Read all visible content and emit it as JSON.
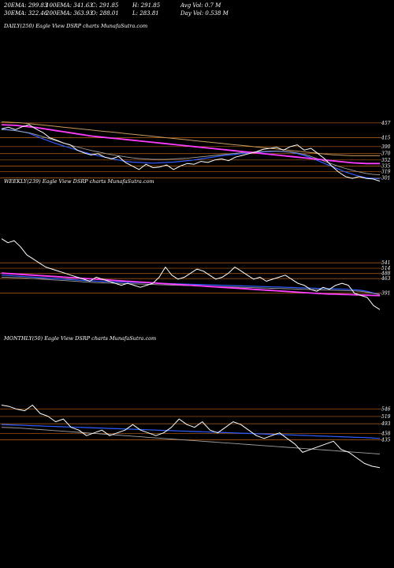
{
  "header": {
    "row1": [
      "20EMA: 299.83",
      "100EMA: 341.63",
      "C: 291.85",
      "H: 291.85",
      "Avg Vol: 0.7 M"
    ],
    "row2": [
      "30EMA: 322.46",
      "200EMA: 363.93",
      "O: 288.01",
      "L: 283.81",
      "Day Vol: 0.538 M"
    ]
  },
  "chart_data": [
    {
      "type": "line",
      "title": "DAILY(250) Eagle View DSRP charts MunafaSutra.com",
      "levels": [
        457,
        415,
        390,
        370,
        352,
        335,
        319,
        301
      ],
      "series": [
        {
          "values": [
            440,
            445,
            438,
            446,
            452,
            440,
            430,
            415,
            408,
            400,
            395,
            380,
            372,
            366,
            370,
            360,
            355,
            362,
            345,
            335,
            325,
            340,
            330,
            332,
            338,
            325,
            335,
            342,
            340,
            348,
            345,
            352,
            355,
            350,
            360,
            365,
            370,
            375,
            382,
            385,
            388,
            380,
            390,
            395,
            380,
            385,
            370,
            355,
            335,
            318,
            305,
            300,
            305,
            300,
            298,
            292
          ]
        },
        {
          "values": [
            440,
            438,
            436,
            432,
            428,
            420,
            412,
            405,
            398,
            392,
            386,
            380,
            374,
            369,
            364,
            360,
            356,
            352,
            348,
            346,
            345,
            344,
            343,
            344,
            345,
            346,
            348,
            350,
            352,
            355,
            358,
            361,
            364,
            366,
            368,
            370,
            372,
            373,
            375,
            376,
            377,
            376,
            374,
            370,
            365,
            358,
            350,
            342,
            334,
            326,
            318,
            312,
            306,
            302,
            300,
            299
          ]
        },
        {
          "values": [
            438,
            437,
            435,
            432,
            429,
            424,
            418,
            412,
            406,
            400,
            394,
            389,
            384,
            379,
            375,
            371,
            367,
            364,
            361,
            358,
            356,
            355,
            354,
            354,
            354,
            355,
            356,
            357,
            359,
            361,
            363,
            365,
            367,
            369,
            371,
            373,
            374,
            375,
            376,
            377,
            377,
            376,
            375,
            372,
            368,
            362,
            355,
            348,
            341,
            334,
            328,
            323,
            318,
            314,
            311,
            310
          ]
        },
        {
          "values": [
            452,
            451,
            450,
            448,
            446,
            444,
            441,
            438,
            435,
            432,
            429,
            426,
            423,
            420,
            418,
            416,
            414,
            412,
            410,
            408,
            406,
            404,
            402,
            400,
            398,
            396,
            394,
            392,
            390,
            388,
            386,
            384,
            382,
            380,
            378,
            376,
            374,
            372,
            370,
            368,
            366,
            364,
            362,
            360,
            358,
            356,
            354,
            352,
            350,
            348,
            346,
            344,
            343,
            342,
            342,
            342
          ]
        },
        {
          "values": [
            460,
            459,
            458,
            457,
            455,
            453,
            451,
            449,
            447,
            445,
            443,
            441,
            439,
            437,
            435,
            433,
            431,
            429,
            427,
            425,
            423,
            421,
            419,
            417,
            415,
            413,
            411,
            409,
            407,
            405,
            403,
            401,
            399,
            397,
            395,
            393,
            391,
            389,
            387,
            385,
            383,
            381,
            379,
            377,
            375,
            373,
            371,
            369,
            367,
            366,
            365,
            364,
            364,
            364,
            364,
            364
          ]
        }
      ]
    },
    {
      "type": "line",
      "title": "WEEKLY(239) Eagle View DSRP charts MunafaSutra.com",
      "levels": [
        541,
        514,
        488,
        463,
        391
      ],
      "series": [
        {
          "values": [
            660,
            640,
            650,
            620,
            580,
            560,
            540,
            520,
            510,
            500,
            490,
            480,
            470,
            460,
            450,
            470,
            460,
            450,
            440,
            430,
            440,
            430,
            420,
            430,
            440,
            470,
            520,
            480,
            460,
            470,
            490,
            510,
            500,
            480,
            460,
            470,
            490,
            520,
            500,
            480,
            460,
            470,
            450,
            460,
            470,
            480,
            460,
            440,
            430,
            410,
            400,
            420,
            410,
            430,
            440,
            430,
            390,
            380,
            370,
            330,
            310
          ]
        },
        {
          "values": [
            480,
            478,
            476,
            474,
            472,
            470,
            468,
            466,
            464,
            462,
            460,
            458,
            456,
            454,
            452,
            450,
            449,
            448,
            447,
            446,
            445,
            444,
            443,
            442,
            441,
            440,
            439,
            438,
            437,
            436,
            435,
            434,
            433,
            432,
            431,
            430,
            429,
            428,
            427,
            426,
            425,
            424,
            423,
            422,
            421,
            420,
            419,
            418,
            417,
            416,
            415,
            414,
            413,
            412,
            411,
            410,
            408,
            405,
            400,
            392,
            385
          ]
        },
        {
          "values": [
            470,
            469,
            468,
            467,
            465,
            463,
            461,
            459,
            457,
            455,
            453,
            451,
            449,
            447,
            445,
            443,
            442,
            441,
            440,
            439,
            438,
            437,
            436,
            435,
            434,
            433,
            432,
            431,
            430,
            429,
            428,
            427,
            426,
            425,
            424,
            423,
            422,
            421,
            420,
            419,
            418,
            417,
            416,
            415,
            414,
            413,
            412,
            411,
            410,
            409,
            408,
            407,
            406,
            405,
            404,
            403,
            402,
            400,
            396,
            390,
            384
          ]
        },
        {
          "values": [
            490,
            488,
            486,
            484,
            482,
            480,
            478,
            476,
            474,
            472,
            470,
            468,
            466,
            464,
            462,
            460,
            458,
            456,
            454,
            452,
            450,
            448,
            446,
            444,
            442,
            440,
            438,
            436,
            434,
            432,
            430,
            428,
            426,
            424,
            422,
            420,
            418,
            416,
            414,
            412,
            410,
            408,
            406,
            404,
            402,
            400,
            398,
            396,
            394,
            392,
            390,
            388,
            387,
            386,
            385,
            384,
            383,
            382,
            381,
            380,
            379
          ]
        }
      ]
    },
    {
      "type": "line",
      "title": "MONTHLY(50) Eagle View DSRP charts MunafaSutra.com",
      "levels": [
        546,
        519,
        493,
        458,
        435
      ],
      "series": [
        {
          "values": [
            560,
            555,
            545,
            540,
            560,
            530,
            520,
            500,
            510,
            480,
            470,
            450,
            460,
            470,
            450,
            460,
            470,
            490,
            470,
            460,
            450,
            460,
            480,
            510,
            490,
            480,
            500,
            470,
            460,
            480,
            500,
            490,
            470,
            450,
            440,
            450,
            460,
            440,
            420,
            390,
            400,
            410,
            420,
            430,
            400,
            390,
            370,
            350,
            340,
            335
          ]
        },
        {
          "values": [
            490,
            489,
            488,
            487,
            486,
            485,
            484,
            483,
            482,
            481,
            480,
            479,
            478,
            477,
            476,
            475,
            474,
            473,
            472,
            471,
            470,
            469,
            468,
            467,
            466,
            465,
            464,
            463,
            462,
            461,
            460,
            459,
            458,
            457,
            456,
            455,
            454,
            453,
            452,
            451,
            450,
            449,
            448,
            447,
            446,
            445,
            444,
            443,
            442,
            440
          ]
        },
        {
          "values": [
            480,
            479,
            478,
            476,
            474,
            472,
            470,
            468,
            466,
            464,
            462,
            460,
            458,
            456,
            454,
            452,
            450,
            448,
            446,
            444,
            442,
            440,
            438,
            436,
            434,
            432,
            430,
            428,
            426,
            424,
            422,
            420,
            418,
            416,
            414,
            412,
            410,
            408,
            406,
            404,
            402,
            400,
            398,
            396,
            394,
            392,
            390,
            388,
            386,
            384
          ]
        }
      ]
    }
  ]
}
